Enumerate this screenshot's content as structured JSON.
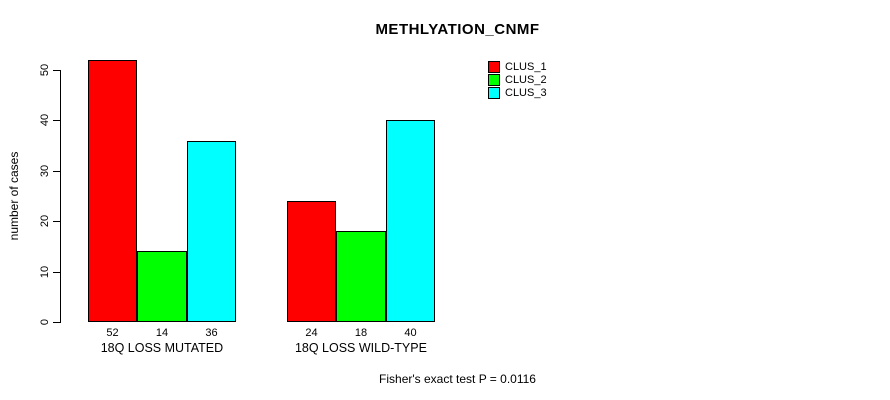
{
  "chart_data": {
    "type": "bar",
    "title": "METHLYATION_CNMF",
    "ylabel": "number of cases",
    "xlabel": "",
    "ylim": [
      0,
      50
    ],
    "yticks": [
      0,
      10,
      20,
      30,
      40,
      50
    ],
    "categories": [
      "18Q LOSS MUTATED",
      "18Q LOSS WILD-TYPE"
    ],
    "series": [
      {
        "name": "CLUS_1",
        "color": "#FF0000",
        "values": [
          52,
          24
        ]
      },
      {
        "name": "CLUS_2",
        "color": "#00FF00",
        "values": [
          14,
          18
        ]
      },
      {
        "name": "CLUS_3",
        "color": "#00FFFF",
        "values": [
          36,
          40
        ]
      }
    ],
    "show_bar_values": true,
    "annotation": "Fisher's exact test P = 0.0116",
    "legend_position": "top-right",
    "grid": false,
    "colors": {
      "background": "#FFFFFF",
      "axis": "#000000",
      "text": "#000000",
      "bar_border": "#000000"
    }
  }
}
